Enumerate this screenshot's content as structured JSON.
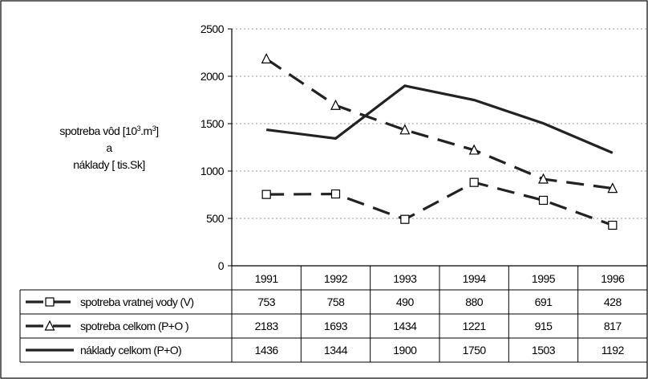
{
  "chart_data": {
    "type": "line",
    "ylabel_lines": [
      "spotreba vôd [10",
      "a",
      "náklady [ tis.Sk]"
    ],
    "ylabel_sup1": "3",
    "ylabel_mid": ".m",
    "ylabel_sup2": "3",
    "ylabel_end": "]",
    "categories": [
      "1991",
      "1992",
      "1993",
      "1994",
      "1995",
      "1996"
    ],
    "y_ticks": [
      "0",
      "500",
      "1000",
      "1500",
      "2000",
      "2500"
    ],
    "ylim": [
      0,
      2500
    ],
    "grid": true,
    "legend_placement": "data-table",
    "series": [
      {
        "name": "spotreba vratnej vody (V)",
        "values": [
          753,
          758,
          490,
          880,
          691,
          428
        ],
        "marker": "square",
        "style": "dashed",
        "color": "#222222"
      },
      {
        "name": "spotreba celkom (P+O )",
        "values": [
          2183,
          1693,
          1434,
          1221,
          915,
          817
        ],
        "marker": "triangle",
        "style": "dashed",
        "color": "#222222"
      },
      {
        "name": "náklady celkom (P+O)",
        "values": [
          1436,
          1344,
          1900,
          1750,
          1503,
          1192
        ],
        "marker": "none",
        "style": "solid",
        "color": "#222222"
      }
    ]
  }
}
